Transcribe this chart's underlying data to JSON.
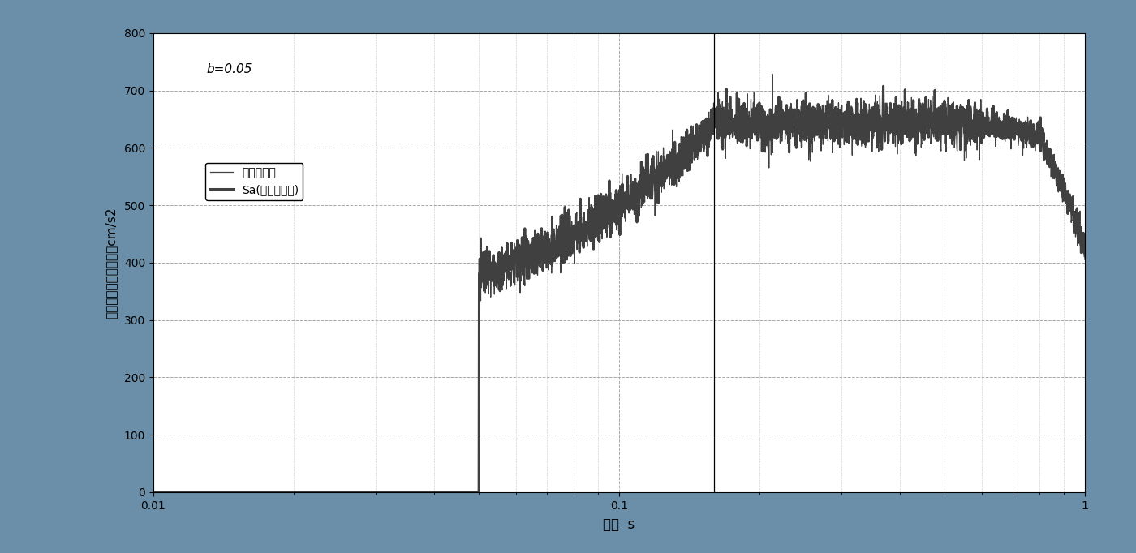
{
  "annotation": "b=0.05",
  "xlabel": "周期  s",
  "ylabel": "加速度応答スペクトルcm/s2",
  "legend_thin": "ターゲット",
  "legend_thick": "Sa(工学的基盤)",
  "xlim": [
    0.01,
    1.0
  ],
  "ylim": [
    0,
    800
  ],
  "yticks": [
    0,
    100,
    200,
    300,
    400,
    500,
    600,
    700,
    800
  ],
  "vline_x": 0.16,
  "plot_bg_color": "#ffffff",
  "border_color": "#6b8fa8",
  "line_color": "#404040",
  "thin_lw": 0.9,
  "thick_lw": 2.2,
  "grid_color": "#aaaaaa",
  "grid_minor_color": "#cccccc"
}
